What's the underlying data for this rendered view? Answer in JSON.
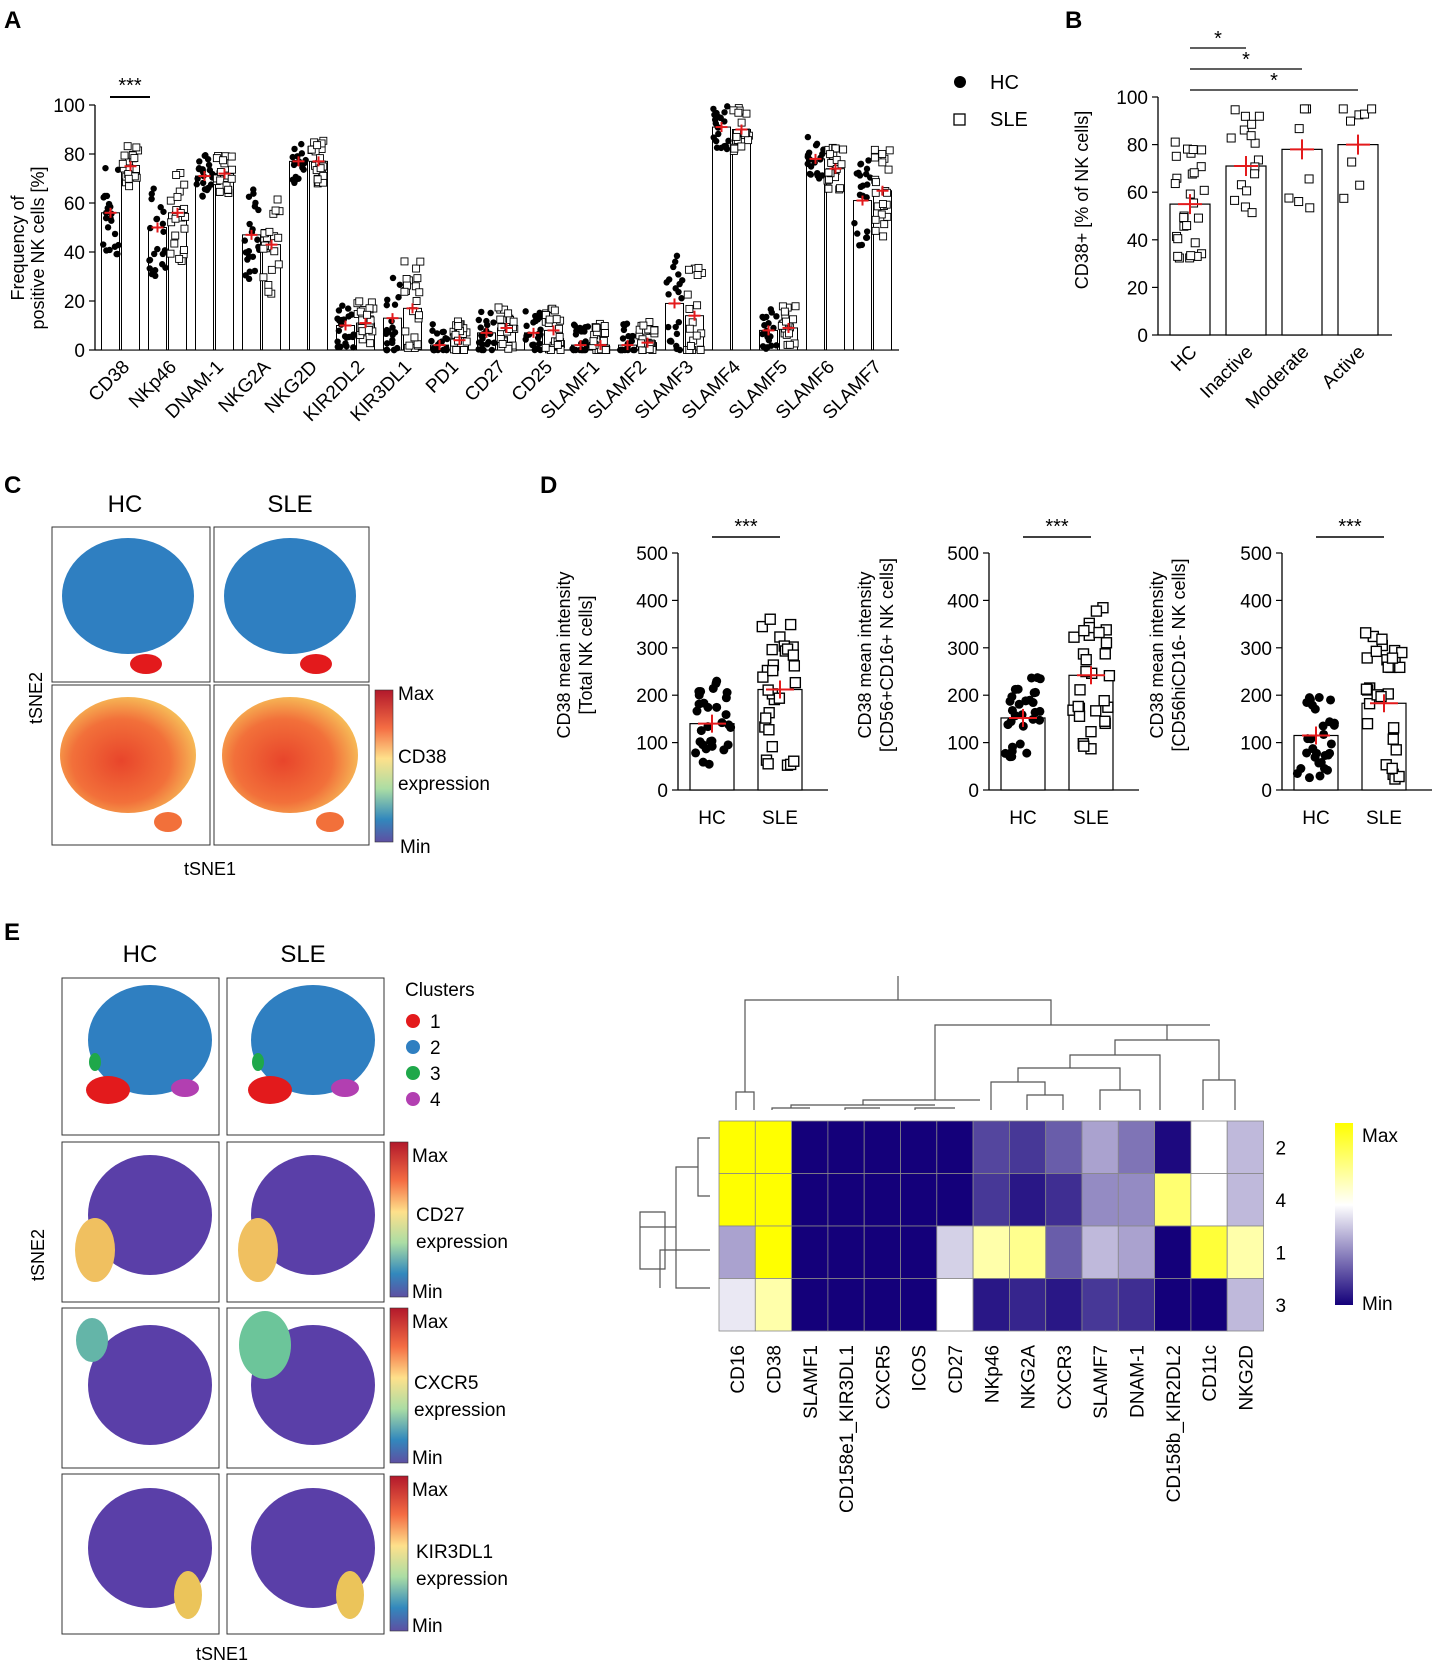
{
  "panel_labels": [
    "A",
    "B",
    "C",
    "D",
    "E"
  ],
  "colors": {
    "bar": "#000000",
    "mean": "#e31a1c",
    "cluster1": "#e31a1c",
    "cluster2": "#2f7fc1",
    "cluster3": "#1fa84a",
    "cluster4": "#b23fb1"
  },
  "chart_data": [
    {
      "panel": "A",
      "type": "bar",
      "ylabel": "Frequency of positive NK cells [%]",
      "ylabel_lines": [
        "Frequency of",
        "positive NK cells [%]"
      ],
      "ylim": [
        0,
        100
      ],
      "yticks": [
        0,
        20,
        40,
        60,
        80,
        100
      ],
      "legend": [
        "HC",
        "SLE"
      ],
      "legend_position": "top-right",
      "significance": "***",
      "categories": [
        "CD38",
        "NKp46",
        "DNAM-1",
        "NKG2A",
        "NKG2D",
        "KIR2DL2",
        "KIR3DL1",
        "PD1",
        "CD27",
        "CD25",
        "SLAMF1",
        "SLAMF2",
        "SLAMF3",
        "SLAMF4",
        "SLAMF5",
        "SLAMF6",
        "SLAMF7"
      ],
      "series": [
        {
          "name": "HC",
          "values": [
            56,
            50,
            71,
            47,
            77,
            10,
            13,
            2,
            7,
            7,
            2,
            2,
            19,
            91,
            8,
            78,
            61
          ]
        },
        {
          "name": "SLE",
          "values": [
            75,
            56,
            72,
            43,
            77,
            11,
            17,
            4,
            9,
            8,
            2,
            3,
            14,
            90,
            9,
            74,
            65
          ]
        }
      ]
    },
    {
      "panel": "B",
      "type": "bar",
      "ylabel": "CD38+ [% of NK cells]",
      "ylim": [
        0,
        100
      ],
      "yticks": [
        0,
        20,
        40,
        60,
        80,
        100
      ],
      "categories": [
        "HC",
        "Inactive",
        "Moderate",
        "Active"
      ],
      "values": [
        55,
        71,
        78,
        80
      ],
      "significance": [
        "*",
        "*",
        "*"
      ]
    },
    {
      "panel": "D1",
      "type": "bar",
      "ylabel": "CD38 mean intensity",
      "ylabel2": "[Total NK cells]",
      "ylim": [
        0,
        500
      ],
      "yticks": [
        0,
        100,
        200,
        300,
        400,
        500
      ],
      "categories": [
        "HC",
        "SLE"
      ],
      "values": [
        140,
        212
      ],
      "significance": "***"
    },
    {
      "panel": "D2",
      "type": "bar",
      "ylabel": "CD38 mean intensity",
      "ylabel2": "[CD56+CD16+ NK cells]",
      "ylim": [
        0,
        500
      ],
      "yticks": [
        0,
        100,
        200,
        300,
        400,
        500
      ],
      "categories": [
        "HC",
        "SLE"
      ],
      "values": [
        152,
        242
      ],
      "significance": "***"
    },
    {
      "panel": "D3",
      "type": "bar",
      "ylabel": "CD38 mean intensity",
      "ylabel2": "[CD56hiCD16- NK cells]",
      "ylim": [
        0,
        500
      ],
      "yticks": [
        0,
        100,
        200,
        300,
        400,
        500
      ],
      "categories": [
        "HC",
        "SLE"
      ],
      "values": [
        115,
        183
      ],
      "significance": "***"
    },
    {
      "panel": "E-heatmap",
      "type": "heatmap",
      "columns": [
        "CD16",
        "CD38",
        "SLAMF1",
        "CD158e1_KIR3DL1",
        "CXCR5",
        "ICOS",
        "CD27",
        "NKp46",
        "NKG2A",
        "CXCR3",
        "SLAMF7",
        "DNAM-1",
        "CD158b_KIR2DL2",
        "CD11c",
        "NKG2D"
      ],
      "rows": [
        "2",
        "4",
        "1",
        "3"
      ],
      "values": [
        [
          1.0,
          1.0,
          0.0,
          0.0,
          0.0,
          0.0,
          0.0,
          0.15,
          0.12,
          0.2,
          0.35,
          0.25,
          0.02,
          0.55,
          0.4
        ],
        [
          1.0,
          1.0,
          0.0,
          0.0,
          0.0,
          0.0,
          0.0,
          0.12,
          0.05,
          0.1,
          0.3,
          0.3,
          0.8,
          0.55,
          0.4
        ],
        [
          0.35,
          1.0,
          0.0,
          0.0,
          0.0,
          0.0,
          0.45,
          0.7,
          0.75,
          0.2,
          0.4,
          0.35,
          0.0,
          0.9,
          0.7
        ],
        [
          0.5,
          0.7,
          0.0,
          0.0,
          0.0,
          0.0,
          0.55,
          0.05,
          0.08,
          0.05,
          0.12,
          0.1,
          0.0,
          0.0,
          0.4
        ]
      ],
      "scale_max": "Max",
      "scale_min": "Min"
    }
  ],
  "panelC": {
    "col_titles": [
      "HC",
      "SLE"
    ],
    "ylabel": "tSNE2",
    "xlabel": "tSNE1",
    "scale": {
      "max": "Max",
      "label": "CD38",
      "label2": "expression",
      "min": "Min"
    }
  },
  "panelE": {
    "col_titles": [
      "HC",
      "SLE"
    ],
    "ylabel": "tSNE2",
    "xlabel": "tSNE1",
    "clusters_title": "Clusters",
    "clusters": [
      "1",
      "2",
      "3",
      "4"
    ],
    "scales": [
      {
        "max": "Max",
        "label": "CD27",
        "label2": "expression",
        "min": "Min"
      },
      {
        "max": "Max",
        "label": "CXCR5",
        "label2": "expression",
        "min": "Min"
      },
      {
        "max": "Max",
        "label": "KIR3DL1",
        "label2": "expression",
        "min": "Min"
      }
    ]
  }
}
